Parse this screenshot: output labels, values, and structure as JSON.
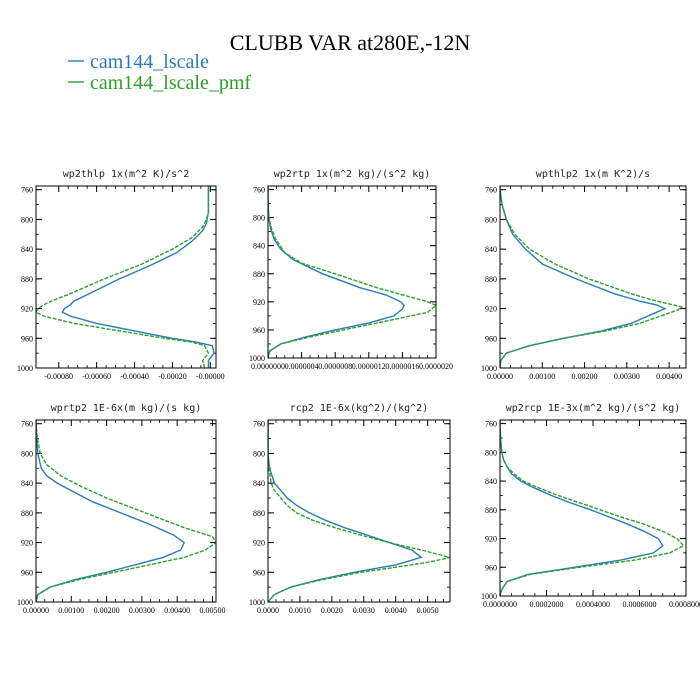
{
  "figure": {
    "title": "CLUBB VAR at280E,-12N"
  },
  "legend": [
    {
      "name": "cam144_lscale",
      "color": "#2b7bb9",
      "dash": "solid"
    },
    {
      "name": "cam144_lscale_pmf",
      "color": "#2ca02c",
      "dash": "dashed"
    }
  ],
  "chart_data": [
    {
      "type": "line",
      "title": "wp2thlp  1x(m^2 K)/s^2",
      "xlim": [
        -0.00092,
        3e-05
      ],
      "ylim": [
        1000,
        755
      ],
      "xticks": [
        -0.0008,
        -0.0006,
        -0.0004,
        -0.0002,
        0.0
      ],
      "xtick_labels": [
        "-0.00080",
        "-0.00060",
        "-0.00040",
        "-0.00020",
        "-0.00000"
      ],
      "yticks": [
        760,
        800,
        840,
        880,
        920,
        960,
        1000
      ],
      "ytick_labels": [
        "760",
        "800",
        "840",
        "880",
        "920",
        "960",
        "1000"
      ],
      "series": [
        {
          "name": "cam144_lscale",
          "y": [
            1000,
            990,
            980,
            970,
            965,
            960,
            950,
            940,
            930,
            925,
            920,
            915,
            910,
            900,
            880,
            860,
            845,
            830,
            815,
            805,
            790,
            770,
            755
          ],
          "x": [
            -1e-05,
            -1e-05,
            2e-05,
            1e-05,
            -8e-05,
            -0.0002,
            -0.0004,
            -0.0006,
            -0.00074,
            -0.00078,
            -0.00077,
            -0.00074,
            -0.00072,
            -0.00064,
            -0.00048,
            -0.0003,
            -0.00018,
            -0.0001,
            -4e-05,
            -2e-05,
            -1e-05,
            -1e-05,
            -1e-05
          ]
        },
        {
          "name": "cam144_lscale_pmf",
          "y": [
            1000,
            990,
            980,
            970,
            965,
            960,
            950,
            940,
            930,
            925,
            920,
            915,
            910,
            900,
            880,
            860,
            840,
            825,
            810,
            800,
            790,
            770,
            755
          ],
          "x": [
            -3e-05,
            -4e-05,
            -1e-05,
            -3e-05,
            -0.0001,
            -0.00024,
            -0.00048,
            -0.00072,
            -0.00088,
            -0.00092,
            -0.00091,
            -0.00088,
            -0.00084,
            -0.00074,
            -0.00056,
            -0.00036,
            -0.0002,
            -0.0001,
            -4e-05,
            -2e-05,
            -1e-05,
            -1e-05,
            -1e-05
          ]
        }
      ]
    },
    {
      "type": "line",
      "title": "wp2rtp  1x(m^2 kg)/(s^2 kg)",
      "xlim": [
        0.0,
        2e-06
      ],
      "ylim": [
        1000,
        755
      ],
      "xticks": [
        0.0,
        4e-07,
        8e-07,
        1.2e-06,
        1.6e-06,
        2e-06
      ],
      "xtick_labels": [
        "0.0000000",
        "0.0000004",
        "0.0000008",
        "0.0000012",
        "0.0000016",
        "0.0000020"
      ],
      "yticks": [
        760,
        800,
        840,
        880,
        920,
        960,
        1000
      ],
      "ytick_labels": [
        "760",
        "800",
        "840",
        "880",
        "920",
        "960",
        "1000"
      ],
      "series": [
        {
          "name": "cam144_lscale",
          "y": [
            1000,
            990,
            980,
            970,
            960,
            950,
            940,
            930,
            925,
            920,
            910,
            900,
            880,
            860,
            845,
            830,
            815,
            800,
            780,
            760,
            755
          ],
          "x": [
            0.0,
            2e-08,
            1.5e-07,
            4.5e-07,
            8e-07,
            1.2e-06,
            1.5e-06,
            1.6e-06,
            1.62e-06,
            1.58e-06,
            1.4e-06,
            1.1e-06,
            6.5e-07,
            3e-07,
            1.5e-07,
            7e-08,
            3e-08,
            1e-08,
            0.0,
            0.0,
            0.0
          ]
        },
        {
          "name": "cam144_lscale_pmf",
          "y": [
            1000,
            990,
            980,
            970,
            960,
            950,
            940,
            935,
            925,
            920,
            910,
            900,
            880,
            865,
            850,
            830,
            815,
            800,
            780,
            760,
            755
          ],
          "x": [
            0.0,
            2e-08,
            1.5e-07,
            5e-07,
            9e-07,
            1.3e-06,
            1.7e-06,
            1.9e-06,
            2e-06,
            1.9e-06,
            1.6e-06,
            1.3e-06,
            8e-07,
            4e-07,
            2e-07,
            9e-08,
            4e-08,
            1e-08,
            0.0,
            0.0,
            0.0
          ]
        }
      ]
    },
    {
      "type": "line",
      "title": "wpthlp2  1x(m K^2)/s",
      "xlim": [
        0.0,
        0.0044
      ],
      "ylim": [
        1000,
        755
      ],
      "xticks": [
        0.0,
        0.001,
        0.002,
        0.003,
        0.004
      ],
      "xtick_labels": [
        "0.00000",
        "0.00100",
        "0.00200",
        "0.00300",
        "0.00400"
      ],
      "yticks": [
        760,
        800,
        840,
        880,
        920,
        960,
        1000
      ],
      "ytick_labels": [
        "760",
        "800",
        "840",
        "880",
        "920",
        "960",
        "1000"
      ],
      "series": [
        {
          "name": "cam144_lscale",
          "y": [
            1000,
            990,
            980,
            970,
            960,
            950,
            940,
            930,
            925,
            920,
            915,
            910,
            900,
            880,
            860,
            840,
            820,
            800,
            780,
            760,
            755
          ],
          "x": [
            0.0,
            2e-05,
            0.00015,
            0.0007,
            0.0015,
            0.0024,
            0.0031,
            0.0035,
            0.0037,
            0.0039,
            0.0037,
            0.0033,
            0.0027,
            0.0018,
            0.001,
            0.0006,
            0.0003,
            0.00015,
            5e-05,
            0.0,
            0.0
          ]
        },
        {
          "name": "cam144_lscale_pmf",
          "y": [
            1000,
            990,
            980,
            970,
            960,
            950,
            940,
            930,
            922,
            918,
            915,
            910,
            900,
            880,
            860,
            840,
            820,
            800,
            780,
            760,
            755
          ],
          "x": [
            0.0,
            2e-05,
            0.00015,
            0.0007,
            0.0015,
            0.0025,
            0.0033,
            0.0038,
            0.0042,
            0.0043,
            0.0041,
            0.0037,
            0.0031,
            0.0021,
            0.0013,
            0.0007,
            0.00035,
            0.00015,
            5e-05,
            0.0,
            0.0
          ]
        }
      ]
    },
    {
      "type": "line",
      "title": "wprtp2  1E-6x(m kg)/(s kg)",
      "xlim": [
        0.0,
        0.0051
      ],
      "ylim": [
        1000,
        755
      ],
      "xticks": [
        0.0,
        0.001,
        0.002,
        0.003,
        0.004,
        0.005
      ],
      "xtick_labels": [
        "0.00000",
        "0.00100",
        "0.00200",
        "0.00300",
        "0.00400",
        "0.00500"
      ],
      "yticks": [
        760,
        800,
        840,
        880,
        920,
        960,
        1000
      ],
      "ytick_labels": [
        "760",
        "800",
        "840",
        "880",
        "920",
        "960",
        "1000"
      ],
      "series": [
        {
          "name": "cam144_lscale",
          "y": [
            1000,
            990,
            980,
            970,
            960,
            950,
            940,
            930,
            920,
            910,
            895,
            880,
            865,
            850,
            840,
            830,
            820,
            800,
            780,
            760,
            755
          ],
          "x": [
            0.0,
            5e-05,
            0.0004,
            0.0011,
            0.002,
            0.0028,
            0.0036,
            0.0041,
            0.0042,
            0.0039,
            0.0032,
            0.0024,
            0.0016,
            0.001,
            0.0006,
            0.0003,
            0.00015,
            5e-05,
            2e-05,
            0.0,
            0.0
          ]
        },
        {
          "name": "cam144_lscale_pmf",
          "y": [
            1000,
            990,
            980,
            970,
            960,
            950,
            940,
            930,
            920,
            912,
            900,
            880,
            860,
            845,
            830,
            815,
            800,
            780,
            760,
            755
          ],
          "x": [
            0.0,
            5e-05,
            0.0004,
            0.0012,
            0.0022,
            0.0032,
            0.0042,
            0.0048,
            0.0051,
            0.005,
            0.0042,
            0.0031,
            0.002,
            0.0013,
            0.0007,
            0.0003,
            0.00012,
            4e-05,
            0.0,
            0.0
          ]
        }
      ]
    },
    {
      "type": "line",
      "title": "rcp2  1E-6x(kg^2)/(kg^2)",
      "xlim": [
        0.0,
        0.0057
      ],
      "ylim": [
        1000,
        755
      ],
      "xticks": [
        0.0,
        0.001,
        0.002,
        0.003,
        0.004,
        0.005
      ],
      "xtick_labels": [
        "0.0000",
        "0.0010",
        "0.0020",
        "0.0030",
        "0.0040",
        "0.0050"
      ],
      "yticks": [
        760,
        800,
        840,
        880,
        920,
        960,
        1000
      ],
      "ytick_labels": [
        "760",
        "800",
        "840",
        "880",
        "920",
        "960",
        "1000"
      ],
      "series": [
        {
          "name": "cam144_lscale",
          "y": [
            1000,
            995,
            990,
            980,
            970,
            960,
            950,
            940,
            930,
            920,
            910,
            900,
            890,
            880,
            870,
            860,
            850,
            840,
            820,
            800,
            780,
            760,
            755
          ],
          "x": [
            0.0,
            0.0001,
            0.0002,
            0.0007,
            0.0016,
            0.0027,
            0.004,
            0.0048,
            0.0045,
            0.0038,
            0.0031,
            0.0024,
            0.0018,
            0.0013,
            0.0009,
            0.0006,
            0.0004,
            0.0002,
            5e-05,
            0.0,
            0.0,
            0.0,
            0.0
          ]
        },
        {
          "name": "cam144_lscale_pmf",
          "y": [
            1000,
            995,
            990,
            980,
            970,
            960,
            950,
            945,
            940,
            930,
            920,
            910,
            900,
            890,
            880,
            870,
            860,
            850,
            840,
            820,
            800,
            780,
            760,
            755
          ],
          "x": [
            0.0,
            0.0001,
            0.0002,
            0.0007,
            0.0017,
            0.0029,
            0.0045,
            0.0052,
            0.0057,
            0.0048,
            0.0038,
            0.0029,
            0.0021,
            0.0014,
            0.0009,
            0.0006,
            0.0004,
            0.0002,
            0.0001,
            3e-05,
            0.0,
            0.0,
            0.0,
            0.0
          ]
        }
      ]
    },
    {
      "type": "line",
      "title": "wp2rcp  1E-3x(m^2 kg)/(s^2 kg)",
      "xlim": [
        0.0,
        0.0008
      ],
      "ylim": [
        1000,
        755
      ],
      "xticks": [
        0.0,
        0.0002,
        0.0004,
        0.0006,
        0.0008
      ],
      "xtick_labels": [
        "0.0000000",
        "0.0002000",
        "0.0004000",
        "0.0006000",
        "0.0008000"
      ],
      "yticks": [
        760,
        800,
        840,
        880,
        920,
        960,
        1000
      ],
      "ytick_labels": [
        "760",
        "800",
        "840",
        "880",
        "920",
        "960",
        "1000"
      ],
      "series": [
        {
          "name": "cam144_lscale",
          "y": [
            1000,
            995,
            990,
            980,
            970,
            960,
            950,
            940,
            930,
            920,
            910,
            900,
            890,
            880,
            870,
            860,
            850,
            840,
            830,
            820,
            810,
            800,
            780,
            760,
            755
          ],
          "x": [
            0.0,
            3e-06,
            1e-05,
            3e-05,
            0.00012,
            0.00032,
            0.00052,
            0.00066,
            0.0007,
            0.00068,
            0.00062,
            0.00055,
            0.00047,
            0.00039,
            0.0003,
            0.00022,
            0.00015,
            9e-05,
            5e-05,
            3e-05,
            1.5e-05,
            8e-06,
            2e-06,
            0.0,
            0.0
          ]
        },
        {
          "name": "cam144_lscale_pmf",
          "y": [
            1000,
            995,
            990,
            980,
            970,
            960,
            950,
            940,
            930,
            920,
            910,
            900,
            890,
            880,
            870,
            860,
            850,
            840,
            830,
            820,
            810,
            800,
            780,
            760,
            755
          ],
          "x": [
            0.0,
            3e-06,
            1e-05,
            3e-05,
            0.00013,
            0.00034,
            0.00058,
            0.00073,
            0.00079,
            0.00076,
            0.0007,
            0.00062,
            0.00052,
            0.00043,
            0.00034,
            0.00025,
            0.00017,
            0.0001,
            6e-05,
            3e-05,
            1.5e-05,
            8e-06,
            2e-06,
            0.0,
            0.0
          ]
        }
      ]
    }
  ]
}
